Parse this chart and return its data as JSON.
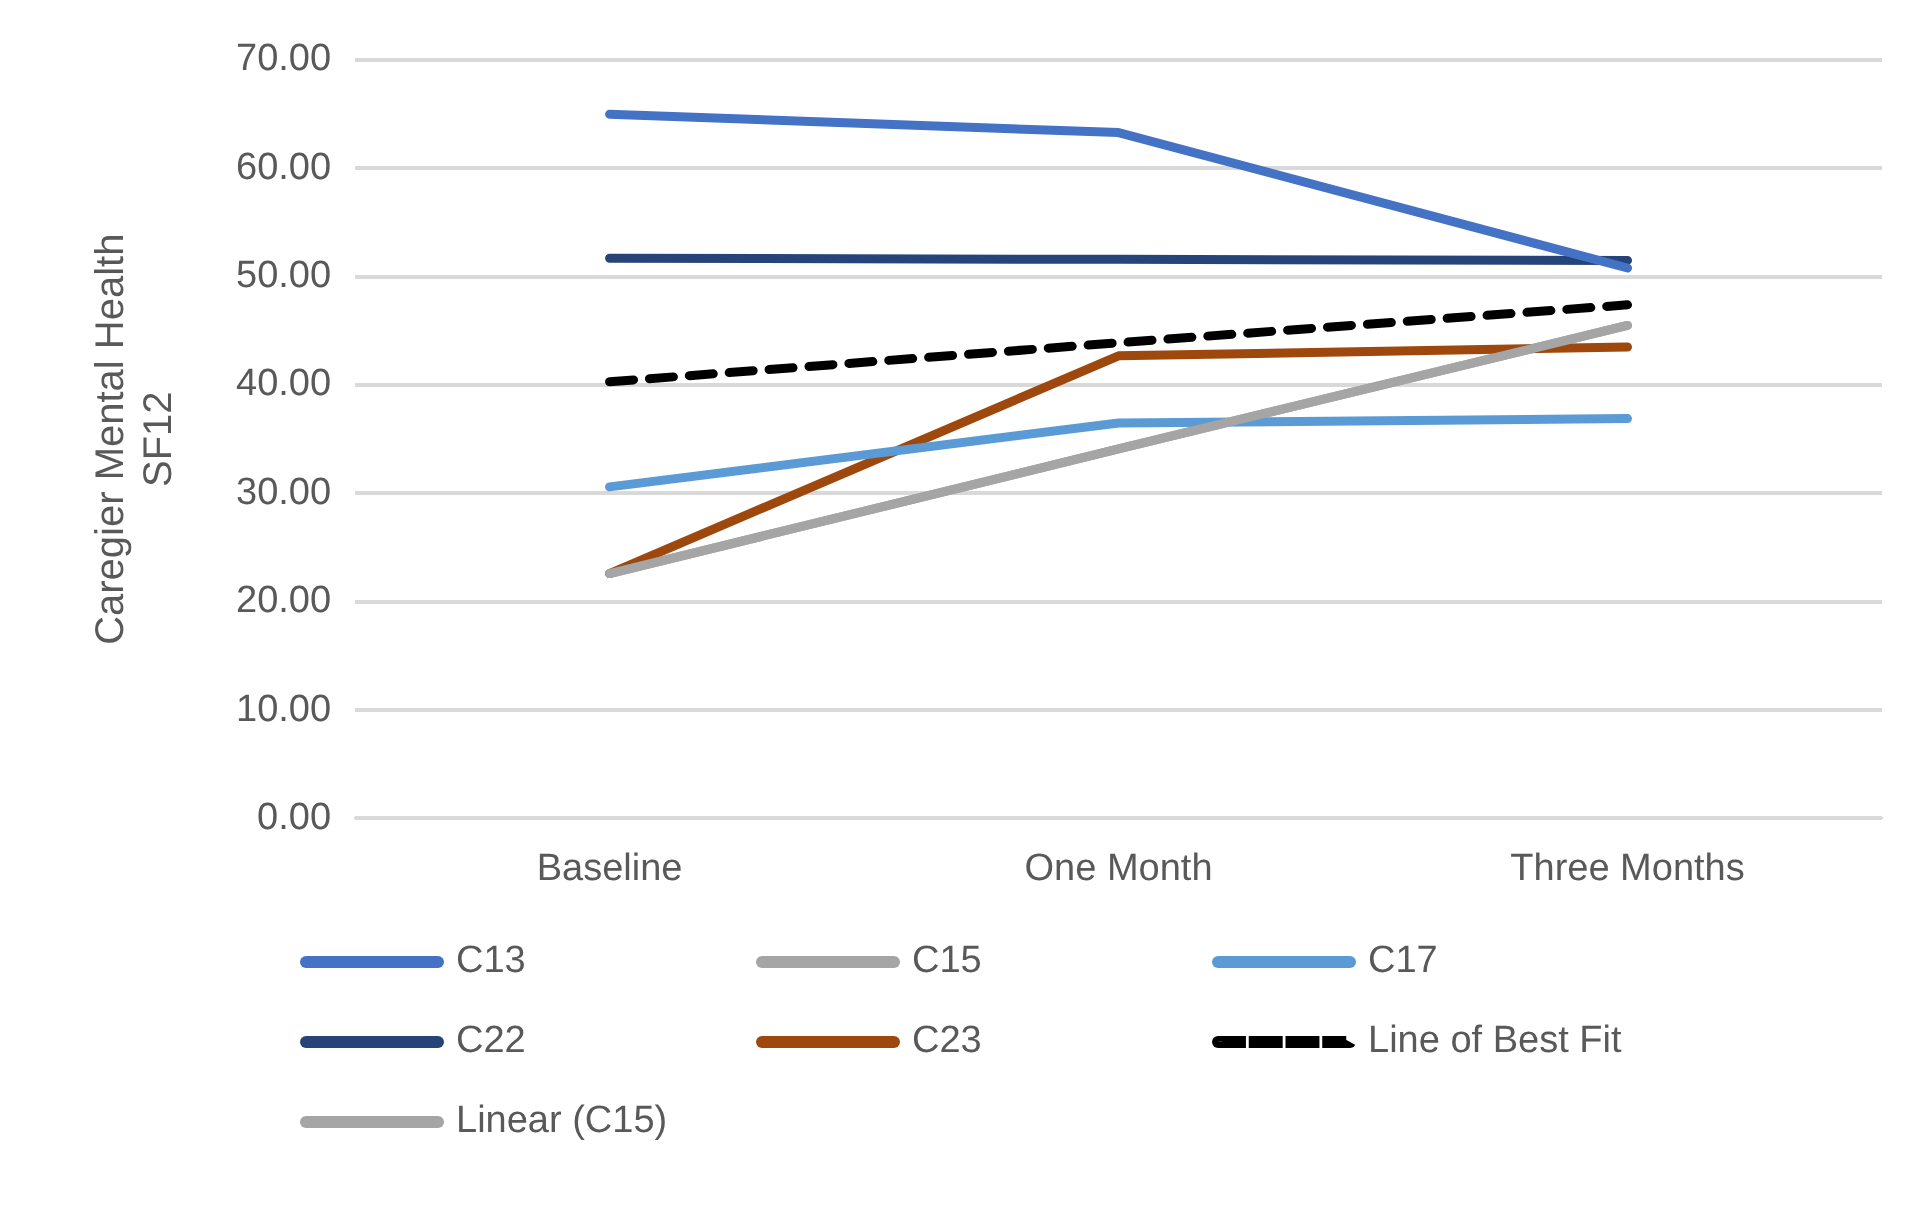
{
  "chart_data": {
    "type": "line",
    "ylabel": "Caregier Mental Health SF12",
    "categories": [
      "Baseline",
      "One Month",
      "Three Months"
    ],
    "ylim": [
      0,
      70
    ],
    "yticks": [
      {
        "value": 0,
        "label": "0.00"
      },
      {
        "value": 10,
        "label": "10.00"
      },
      {
        "value": 20,
        "label": "20.00"
      },
      {
        "value": 30,
        "label": "30.00"
      },
      {
        "value": 40,
        "label": "40.00"
      },
      {
        "value": 50,
        "label": "50.00"
      },
      {
        "value": 60,
        "label": "60.00"
      },
      {
        "value": 70,
        "label": "70.00"
      }
    ],
    "grid": "y",
    "legend": "bottom",
    "marker": "none",
    "series": [
      {
        "name": "C13",
        "color": "#4472c4",
        "values": [
          65.0,
          63.3,
          50.8
        ]
      },
      {
        "name": "C15",
        "color": "#a5a5a5",
        "values": [
          22.6,
          34.1,
          45.5
        ]
      },
      {
        "name": "C17",
        "color": "#5b9bd5",
        "values": [
          30.6,
          36.5,
          36.9
        ]
      },
      {
        "name": "C22",
        "color": "#264478",
        "values": [
          51.7,
          51.6,
          51.5
        ]
      },
      {
        "name": "C23",
        "color": "#9e480e",
        "values": [
          22.6,
          42.7,
          43.5
        ]
      },
      {
        "name": "Line of Best Fit",
        "color": "#000000",
        "line_style": "dashed",
        "values": [
          40.3,
          43.9,
          47.4
        ]
      },
      {
        "name": "Linear (C15)",
        "color": "#a5a5a5",
        "values": [
          22.6,
          34.1,
          45.5
        ]
      }
    ]
  }
}
